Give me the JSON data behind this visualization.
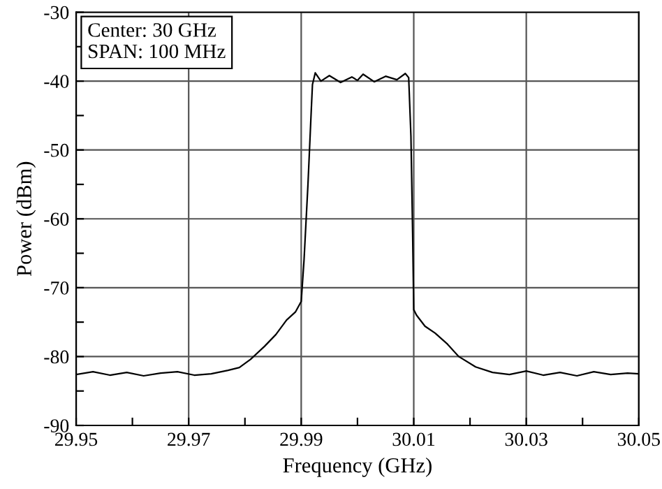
{
  "chart_data": {
    "type": "line",
    "xlabel": "Frequency (GHz)",
    "ylabel": "Power (dBm)",
    "annotations": [
      "Center: 30 GHz",
      "SPAN: 100 MHz"
    ],
    "x": [
      29.95,
      29.953,
      29.956,
      29.959,
      29.962,
      29.965,
      29.968,
      29.971,
      29.974,
      29.977,
      29.979,
      29.981,
      29.9835,
      29.9855,
      29.9874,
      29.989,
      29.99,
      29.9905,
      29.9912,
      29.9918,
      29.992,
      29.9925,
      29.9935,
      29.995,
      29.997,
      29.999,
      30.0,
      30.001,
      30.003,
      30.005,
      30.007,
      30.0085,
      30.0091,
      30.0095,
      30.0098,
      30.01,
      30.0105,
      30.012,
      30.0138,
      30.016,
      30.018,
      30.021,
      30.024,
      30.027,
      30.03,
      30.033,
      30.036,
      30.039,
      30.042,
      30.045,
      30.048,
      30.05
    ],
    "values": [
      -82.6,
      -82.2,
      -82.7,
      -82.3,
      -82.8,
      -82.4,
      -82.2,
      -82.7,
      -82.5,
      -82.0,
      -81.6,
      -80.4,
      -78.5,
      -76.8,
      -74.7,
      -73.5,
      -72.0,
      -66,
      -55,
      -44,
      -40.5,
      -38.8,
      -40.0,
      -39.2,
      -40.2,
      -39.4,
      -39.9,
      -39.0,
      -40.1,
      -39.3,
      -39.8,
      -38.9,
      -39.5,
      -48,
      -62,
      -73.2,
      -74.0,
      -75.6,
      -76.6,
      -78.2,
      -80.0,
      -81.5,
      -82.3,
      -82.6,
      -82.1,
      -82.7,
      -82.3,
      -82.8,
      -82.2,
      -82.6,
      -82.4,
      -82.5
    ],
    "color": "#000000",
    "xlim": [
      29.95,
      30.05
    ],
    "xticks": [
      29.95,
      {
        "value": 29.96,
        "label": null
      },
      29.97,
      {
        "value": 29.98,
        "label": null
      },
      29.99,
      {
        "value": 30.0,
        "label": null
      },
      30.01,
      {
        "value": 30.02,
        "label": null
      },
      30.03,
      {
        "value": 30.04,
        "label": null
      },
      30.05
    ],
    "ylim": [
      -90,
      -30
    ],
    "yticks": [
      -90,
      {
        "value": -85,
        "label": null
      },
      -80,
      {
        "value": -75,
        "label": null
      },
      -70,
      {
        "value": -65,
        "label": null
      },
      -60,
      {
        "value": -55,
        "label": null
      },
      -50,
      {
        "value": -45,
        "label": null
      },
      -40,
      {
        "value": -35,
        "label": null
      },
      -30
    ],
    "grid": true,
    "legend": false
  }
}
